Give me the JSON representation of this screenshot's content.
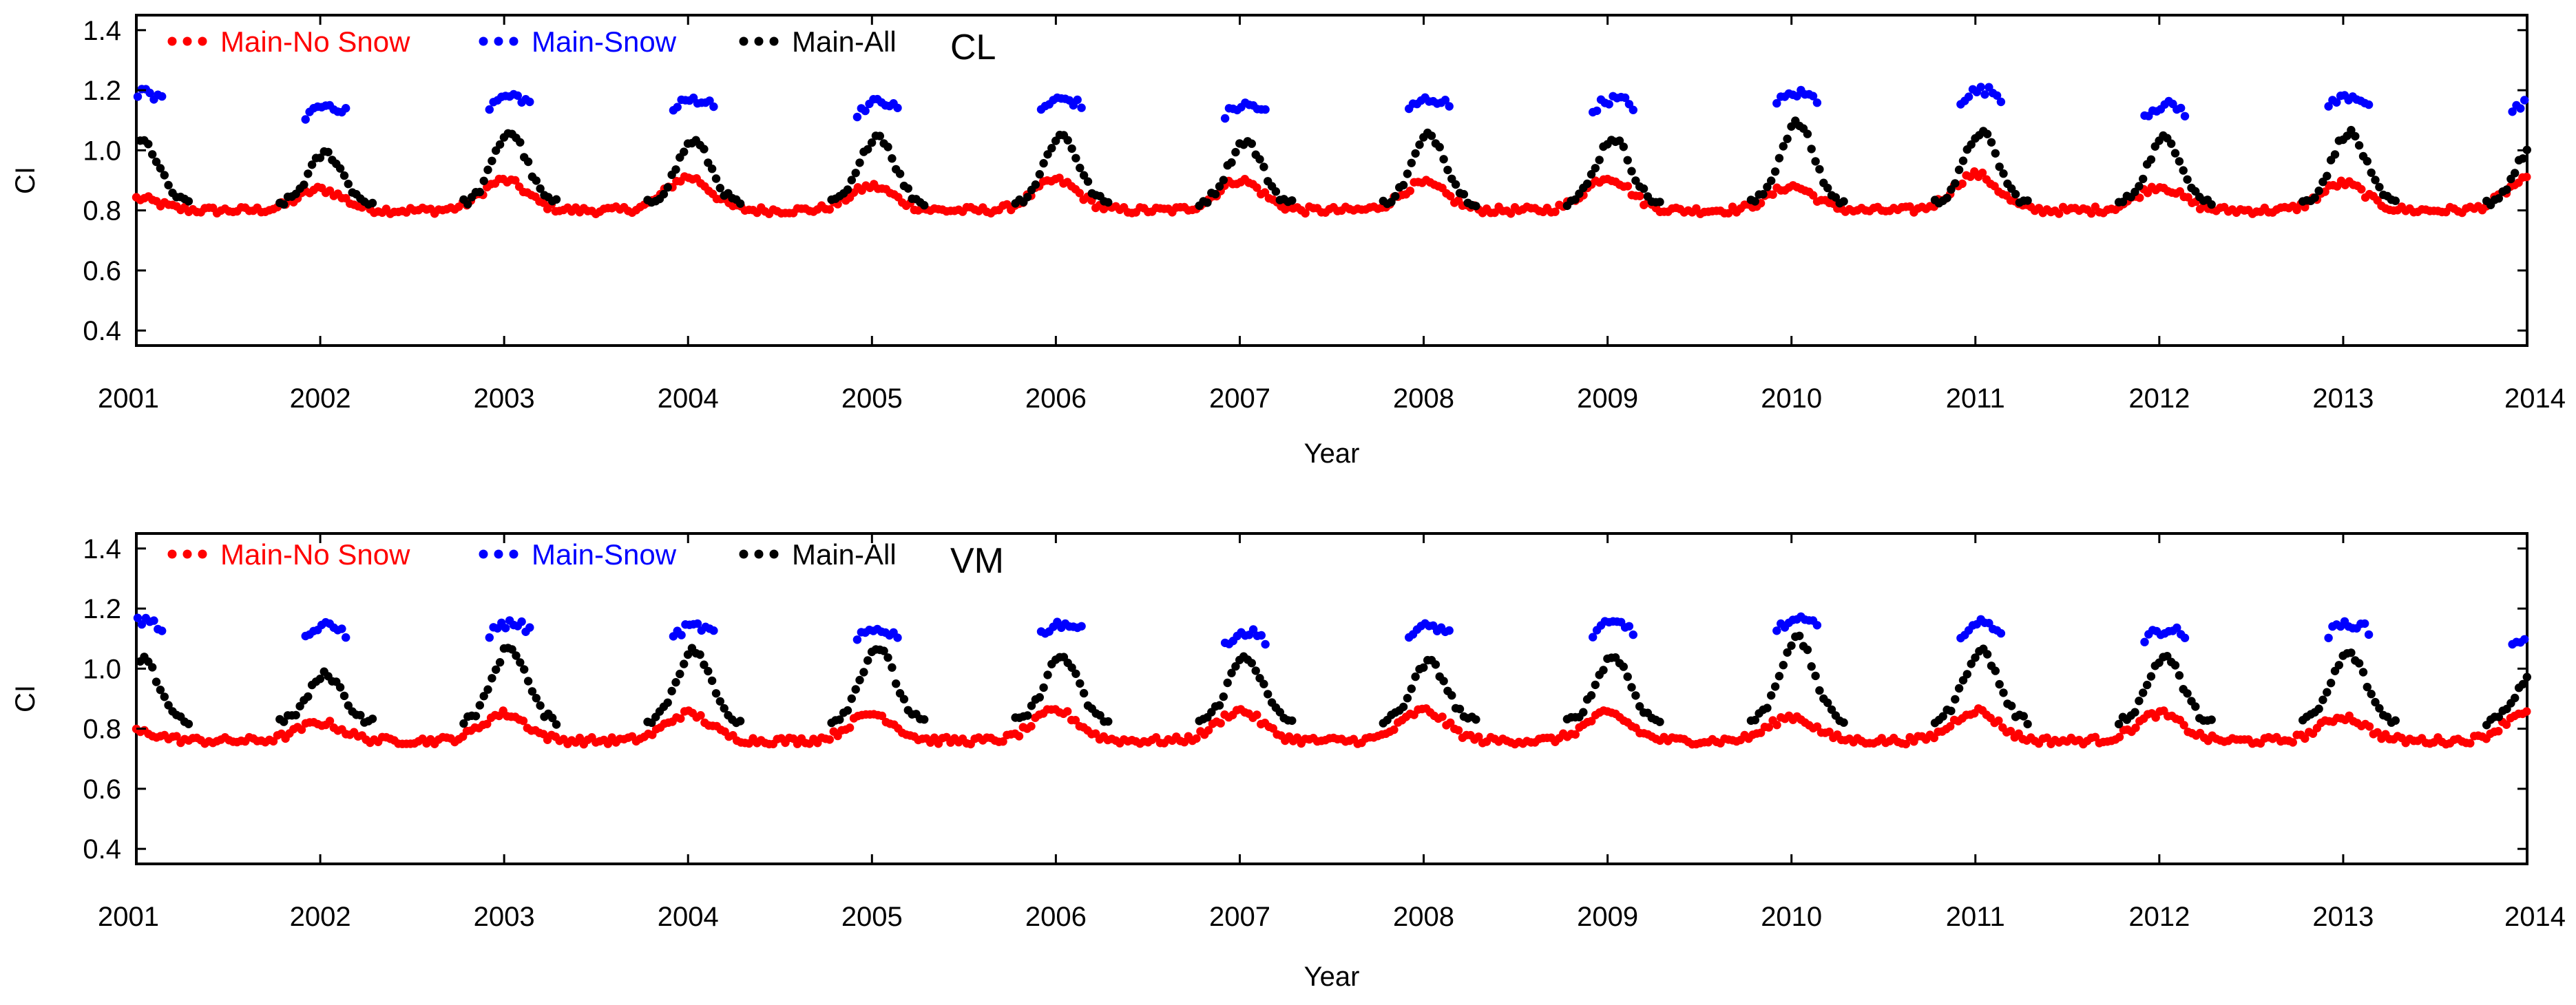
{
  "chart_data": [
    {
      "type": "scatter",
      "site_label": "CL",
      "xlabel": "Year",
      "ylabel": "CI",
      "xlim": [
        2001,
        2014
      ],
      "ylim": [
        0.35,
        1.45
      ],
      "x_ticks": [
        "2001",
        "2002",
        "2003",
        "2004",
        "2005",
        "2006",
        "2007",
        "2008",
        "2009",
        "2010",
        "2011",
        "2012",
        "2013",
        "2014"
      ],
      "y_ticks": [
        "1.4",
        "1.2",
        "1.0",
        "0.8",
        "0.6",
        "0.4"
      ],
      "y_tick_values": [
        1.4,
        1.2,
        1.0,
        0.8,
        0.6,
        0.4
      ],
      "grid": false,
      "legend_position": "top-left",
      "series": [
        {
          "name": "Main-No Snow",
          "color": "#ff0000",
          "baseline": 0.8,
          "annual_peak_values": [
            0.84,
            0.87,
            0.9,
            0.91,
            0.88,
            0.9,
            0.9,
            0.89,
            0.91,
            0.88,
            0.92,
            0.88,
            0.89,
            0.9
          ]
        },
        {
          "name": "Main-Snow",
          "color": "#0000ff",
          "winter_values": [
            1.19,
            1.15,
            1.18,
            1.17,
            1.16,
            1.17,
            1.15,
            1.17,
            1.17,
            1.19,
            1.2,
            1.15,
            1.18,
            1.16
          ]
        },
        {
          "name": "Main-All",
          "color": "#000000",
          "winter_peak_values": [
            1.03,
            0.99,
            1.06,
            1.03,
            1.05,
            1.05,
            1.03,
            1.05,
            1.04,
            1.09,
            1.06,
            1.04,
            1.06,
            1.01
          ]
        }
      ]
    },
    {
      "type": "scatter",
      "site_label": "VM",
      "xlabel": "Year",
      "ylabel": "CI",
      "xlim": [
        2001,
        2014
      ],
      "ylim": [
        0.35,
        1.45
      ],
      "x_ticks": [
        "2001",
        "2002",
        "2003",
        "2004",
        "2005",
        "2006",
        "2007",
        "2008",
        "2009",
        "2010",
        "2011",
        "2012",
        "2013",
        "2014"
      ],
      "y_ticks": [
        "1.4",
        "1.2",
        "1.0",
        "0.8",
        "0.6",
        "0.4"
      ],
      "y_tick_values": [
        1.4,
        1.2,
        1.0,
        0.8,
        0.6,
        0.4
      ],
      "grid": false,
      "legend_position": "top-left",
      "series": [
        {
          "name": "Main-No Snow",
          "color": "#ff0000",
          "baseline": 0.76,
          "annual_peak_values": [
            0.79,
            0.82,
            0.85,
            0.85,
            0.85,
            0.86,
            0.86,
            0.86,
            0.85,
            0.84,
            0.86,
            0.85,
            0.84,
            0.86
          ]
        },
        {
          "name": "Main-Snow",
          "color": "#0000ff",
          "winter_values": [
            1.16,
            1.14,
            1.15,
            1.14,
            1.13,
            1.15,
            1.12,
            1.14,
            1.15,
            1.16,
            1.15,
            1.13,
            1.15,
            1.11
          ]
        },
        {
          "name": "Main-All",
          "color": "#000000",
          "winter_peak_values": [
            1.03,
            0.98,
            1.07,
            1.06,
            1.07,
            1.04,
            1.04,
            1.02,
            1.04,
            1.1,
            1.06,
            1.04,
            1.05,
            0.98
          ]
        }
      ]
    }
  ]
}
